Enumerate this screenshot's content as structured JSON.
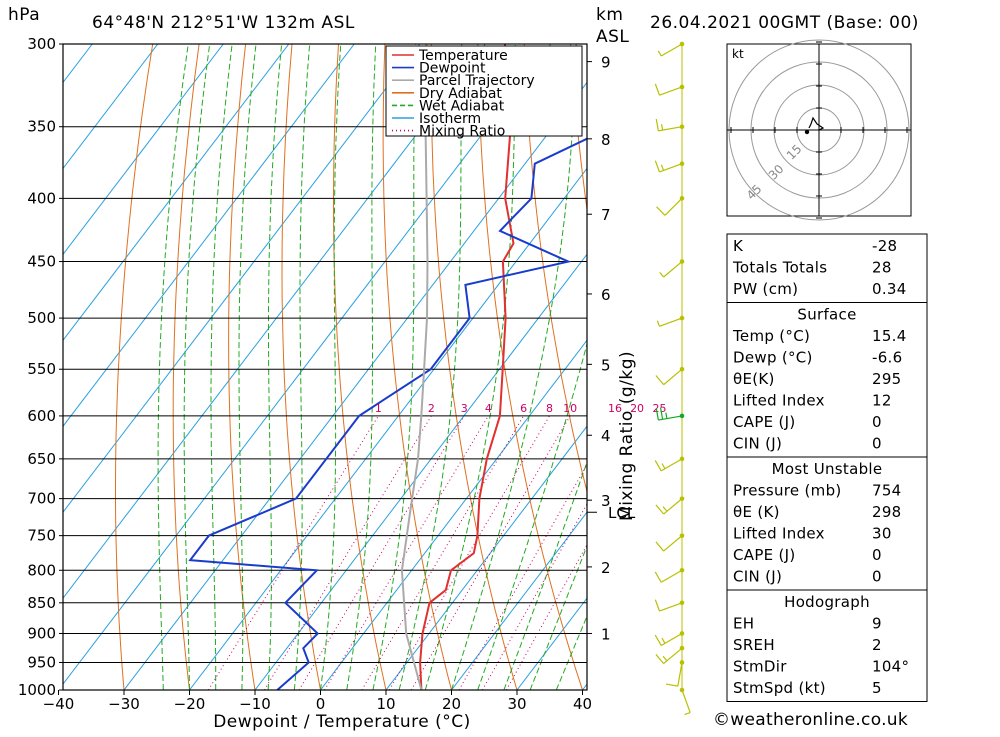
{
  "header": {
    "location": "64°48'N  212°51'W  132m  ASL",
    "datetime": "26.04.2021  00GMT  (Base: 00)",
    "left_unit": "hPa",
    "right_unit_1": "km",
    "right_unit_2": "ASL"
  },
  "chart_data": {
    "type": "line",
    "title": "64°48'N  212°51'W  132m  ASL",
    "xlabel": "Dewpoint / Temperature (°C)",
    "ylabel": "hPa",
    "xlim": [
      -40,
      40
    ],
    "ylim": [
      1000,
      300
    ],
    "pressure_ticks": [
      300,
      350,
      400,
      450,
      500,
      550,
      600,
      650,
      700,
      750,
      800,
      850,
      900,
      950,
      1000
    ],
    "temp_ticks": [
      -40,
      -30,
      -20,
      -10,
      0,
      10,
      20,
      30,
      40
    ],
    "km_ticks": [
      {
        "km": 1,
        "p": 900
      },
      {
        "km": 2,
        "p": 795
      },
      {
        "km": 3,
        "p": 702
      },
      {
        "km": 4,
        "p": 622
      },
      {
        "km": 5,
        "p": 545
      },
      {
        "km": 6,
        "p": 478
      },
      {
        "km": 7,
        "p": 412
      },
      {
        "km": 8,
        "p": 358
      },
      {
        "km": 9,
        "p": 310
      }
    ],
    "lcl": {
      "label": "LCL",
      "p": 718
    },
    "mixing_ratio_label": "Mixing Ratio (g/kg)",
    "mixing_ratios": [
      1,
      2,
      3,
      4,
      6,
      8,
      10,
      16,
      20,
      25
    ],
    "mixing_ratio_labels": [
      "1",
      "2",
      "3",
      "4",
      "6",
      "8",
      "10",
      "16",
      "20",
      "25"
    ],
    "legend": [
      {
        "name": "Temperature",
        "color": "#e03030",
        "style": "solid"
      },
      {
        "name": "Dewpoint",
        "color": "#1a3ccc",
        "style": "solid"
      },
      {
        "name": "Parcel Trajectory",
        "color": "#aaaaaa",
        "style": "solid"
      },
      {
        "name": "Dry Adiabat",
        "color": "#e07020",
        "style": "solid"
      },
      {
        "name": "Wet Adiabat",
        "color": "#22aa22",
        "style": "dashed"
      },
      {
        "name": "Isotherm",
        "color": "#2aa0e0",
        "style": "solid"
      },
      {
        "name": "Mixing Ratio",
        "color": "#cc0066",
        "style": "dotted"
      }
    ],
    "series": [
      {
        "name": "Temperature",
        "color": "#e03030",
        "points": [
          [
            1000,
            15.4
          ],
          [
            950,
            12.0
          ],
          [
            900,
            9.0
          ],
          [
            850,
            6.5
          ],
          [
            830,
            7.5
          ],
          [
            800,
            6.0
          ],
          [
            775,
            7.5
          ],
          [
            750,
            6.0
          ],
          [
            700,
            2.0
          ],
          [
            650,
            -1.5
          ],
          [
            600,
            -4.5
          ],
          [
            550,
            -9.5
          ],
          [
            500,
            -15.0
          ],
          [
            450,
            -22.0
          ],
          [
            435,
            -22.5
          ],
          [
            400,
            -29.0
          ],
          [
            350,
            -36.5
          ],
          [
            300,
            -47.0
          ]
        ]
      },
      {
        "name": "Dewpoint",
        "color": "#1a3ccc",
        "points": [
          [
            1000,
            -6.6
          ],
          [
            950,
            -5.0
          ],
          [
            925,
            -7.5
          ],
          [
            900,
            -7.0
          ],
          [
            850,
            -15.5
          ],
          [
            800,
            -14.5
          ],
          [
            785,
            -35.0
          ],
          [
            750,
            -35.0
          ],
          [
            700,
            -26.0
          ],
          [
            600,
            -26.0
          ],
          [
            550,
            -20.5
          ],
          [
            500,
            -20.5
          ],
          [
            470,
            -25.0
          ],
          [
            450,
            -12.0
          ],
          [
            425,
            -26.0
          ],
          [
            400,
            -25.0
          ],
          [
            375,
            -28.5
          ],
          [
            350,
            -21.0
          ],
          [
            300,
            -28.0
          ]
        ]
      },
      {
        "name": "Parcel Trajectory",
        "color": "#aaaaaa",
        "points": [
          [
            1000,
            15.4
          ],
          [
            900,
            6.5
          ],
          [
            800,
            -1.5
          ],
          [
            718,
            -7.0
          ],
          [
            650,
            -12.0
          ],
          [
            600,
            -16.5
          ],
          [
            550,
            -21.5
          ],
          [
            500,
            -27.0
          ],
          [
            450,
            -33.5
          ],
          [
            400,
            -41.0
          ],
          [
            350,
            -49.5
          ],
          [
            300,
            -59.0
          ]
        ]
      }
    ],
    "wind_barbs": [
      {
        "p": 1000,
        "dir": 160,
        "spd": 5
      },
      {
        "p": 950,
        "dir": 190,
        "spd": 10
      },
      {
        "p": 925,
        "dir": 230,
        "spd": 15
      },
      {
        "p": 900,
        "dir": 240,
        "spd": 15
      },
      {
        "p": 850,
        "dir": 250,
        "spd": 10
      },
      {
        "p": 800,
        "dir": 240,
        "spd": 10
      },
      {
        "p": 750,
        "dir": 230,
        "spd": 10
      },
      {
        "p": 700,
        "dir": 230,
        "spd": 15
      },
      {
        "p": 650,
        "dir": 240,
        "spd": 15
      },
      {
        "p": 600,
        "dir": 260,
        "spd": 25
      },
      {
        "p": 550,
        "dir": 230,
        "spd": 10
      },
      {
        "p": 500,
        "dir": 250,
        "spd": 5
      },
      {
        "p": 450,
        "dir": 230,
        "spd": 5
      },
      {
        "p": 400,
        "dir": 225,
        "spd": 10
      },
      {
        "p": 375,
        "dir": 250,
        "spd": 15
      },
      {
        "p": 350,
        "dir": 260,
        "spd": 15
      },
      {
        "p": 325,
        "dir": 250,
        "spd": 10
      },
      {
        "p": 300,
        "dir": 240,
        "spd": 5
      }
    ],
    "hodograph": {
      "unit": "kt",
      "ring_labels": [
        "15",
        "30",
        "45"
      ],
      "points": [
        [
          0,
          0
        ],
        [
          2,
          1
        ],
        [
          -1,
          3
        ],
        [
          -3,
          6
        ],
        [
          -4,
          3
        ],
        [
          -5,
          1
        ]
      ]
    }
  },
  "table": {
    "indices": [
      {
        "label": "K",
        "value": "-28"
      },
      {
        "label": "Totals Totals",
        "value": "28"
      },
      {
        "label": "PW (cm)",
        "value": "0.34"
      }
    ],
    "surface": {
      "title": "Surface",
      "rows": [
        {
          "label": "Temp (°C)",
          "value": "15.4"
        },
        {
          "label": "Dewp (°C)",
          "value": "-6.6"
        },
        {
          "label": "θE(K)",
          "value": "295"
        },
        {
          "label": "Lifted Index",
          "value": "12"
        },
        {
          "label": "CAPE (J)",
          "value": "0"
        },
        {
          "label": "CIN (J)",
          "value": "0"
        }
      ]
    },
    "most_unstable": {
      "title": "Most Unstable",
      "rows": [
        {
          "label": "Pressure (mb)",
          "value": "754"
        },
        {
          "label": "θE (K)",
          "value": "298"
        },
        {
          "label": "Lifted Index",
          "value": "30"
        },
        {
          "label": "CAPE (J)",
          "value": "0"
        },
        {
          "label": "CIN (J)",
          "value": "0"
        }
      ]
    },
    "hodograph": {
      "title": "Hodograph",
      "rows": [
        {
          "label": "EH",
          "value": "9"
        },
        {
          "label": "SREH",
          "value": "2"
        },
        {
          "label": "StmDir",
          "value": "104°"
        },
        {
          "label": "StmSpd (kt)",
          "value": "5"
        }
      ]
    }
  },
  "footer": "©weatheronline.co.uk"
}
